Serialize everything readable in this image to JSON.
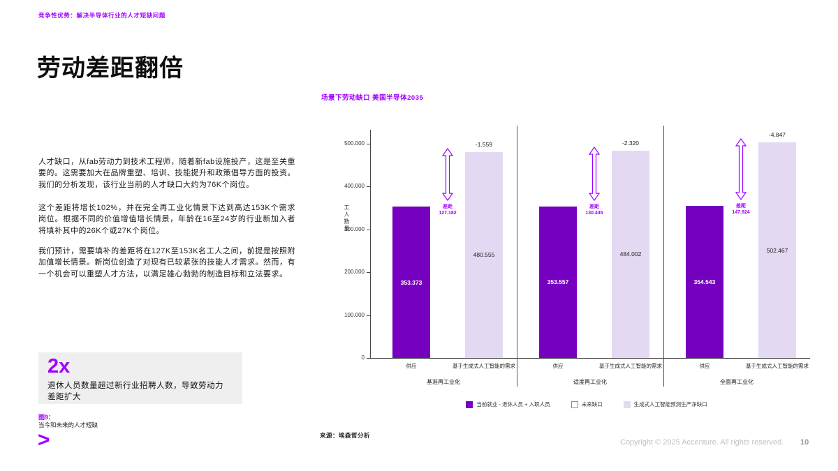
{
  "page": {
    "tagline": "竞争性优势：解决半导体行业的人才短缺问题",
    "title": "劳动差距翻倍",
    "paragraphs": [
      "人才缺口，从fab劳动力到技术工程师，随着新fab设施投产，这是至关重要的。这需要加大在品牌重塑、培训、技能提升和政策倡导方面的投资。我们的分析发现，该行业当前的人才缺口大约为76K个岗位。",
      "这个差距将增长102%，并在完全再工业化情景下达到高达153K个需求岗位。根据不同的价值增值增长情景，年龄在16至24岁的行业新加入者将填补其中的26K个或27K个岗位。",
      "我们预计，需要填补的差距将在127K至153K名工人之间，前提是按照附加值增长情景。新岗位创造了对现有已较紧张的技能人才需求。然而，有一个机会可以重塑人才方法，以满足雄心勃勃的制造目标和立法要求。"
    ],
    "stat": {
      "value": "2x",
      "desc": "退休人员数量超过新行业招聘人数，导致劳动力差距扩大"
    },
    "figure": {
      "label": "图9：",
      "text": "当今和未来的人才短缺"
    },
    "logo": ">",
    "source": "来源：埃森哲分析",
    "copyright": "Copyright © 2025 Accenture. All rights reserved.",
    "page_number": "10"
  },
  "chart_data": {
    "type": "bar",
    "title": "场景下劳动缺口 美国半导体2035",
    "ylabel": "工人数量",
    "ylim": [
      0,
      500000
    ],
    "yticks": [
      {
        "value": 0,
        "label": "0"
      },
      {
        "value": 100000,
        "label": "100.000"
      },
      {
        "value": 200000,
        "label": "200.000"
      },
      {
        "value": 300000,
        "label": "300.000"
      },
      {
        "value": 400000,
        "label": "400.000"
      },
      {
        "value": 500000,
        "label": "500.000"
      }
    ],
    "groups": [
      {
        "label": "基准再工业化",
        "supply": {
          "label": "供应",
          "value": 353373,
          "display": "353.373"
        },
        "demand": {
          "label": "基于生成式人工智能的需求",
          "value": 480555,
          "display": "480.555",
          "top_label": "-1.559"
        },
        "gap": {
          "label": "差距",
          "display": "127.182"
        }
      },
      {
        "label": "适度再工业化",
        "supply": {
          "label": "供应",
          "value": 353557,
          "display": "353.557"
        },
        "demand": {
          "label": "基于生成式人工智能的需求",
          "value": 484002,
          "display": "484.002",
          "top_label": "-2.320"
        },
        "gap": {
          "label": "差距",
          "display": "130.445"
        }
      },
      {
        "label": "全面再工业化",
        "supply": {
          "label": "供应",
          "value": 354543,
          "display": "354.543"
        },
        "demand": {
          "label": "基于生成式人工智能的需求",
          "value": 502467,
          "display": "502.467",
          "top_label": "-4.847"
        },
        "gap": {
          "label": "差距",
          "display": "147.924"
        }
      }
    ],
    "legend": [
      {
        "color": "#7500c0",
        "border": "#7500c0",
        "label": "当前就业 - 退休人员 + 入职人员"
      },
      {
        "color": "#ffffff",
        "border": "#8c8c8c",
        "label": "未来缺口"
      },
      {
        "color": "#e3d9f3",
        "border": "#e3d9f3",
        "label": "生成式人工智能预测生产净缺口"
      }
    ],
    "colors": {
      "supply": "#7500c0",
      "demand": "#e3d9f3",
      "accent": "#a100ff"
    },
    "legend_position": "bottom",
    "grid": false
  }
}
